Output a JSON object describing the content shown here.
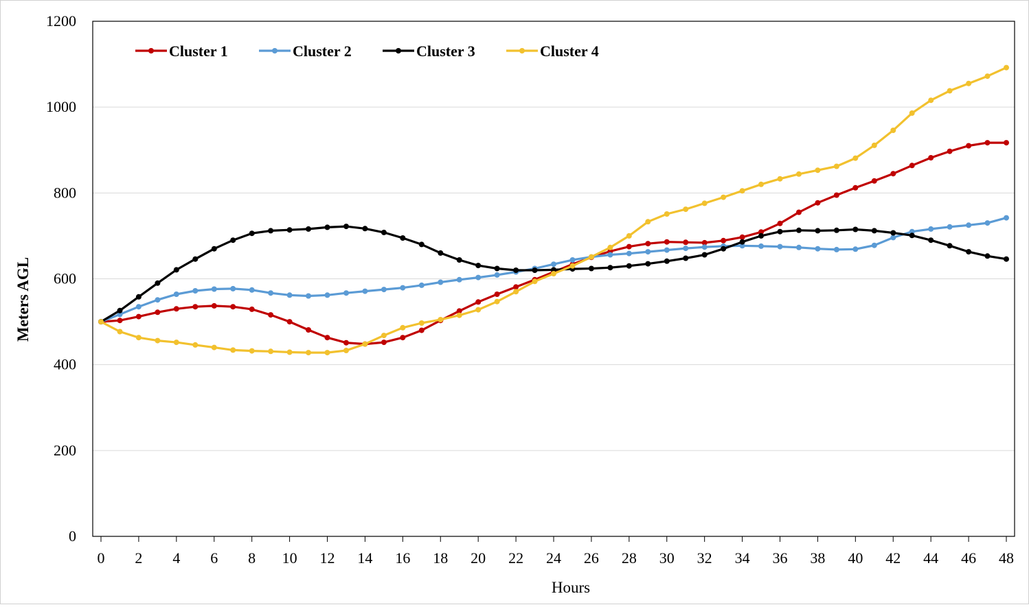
{
  "chart_data": {
    "type": "line",
    "title": "",
    "xlabel": "Hours",
    "ylabel": "Meters AGL",
    "xlim": [
      0,
      48
    ],
    "ylim": [
      0,
      1200
    ],
    "x_ticks": [
      0,
      2,
      4,
      6,
      8,
      10,
      12,
      14,
      16,
      18,
      20,
      22,
      24,
      26,
      28,
      30,
      32,
      34,
      36,
      38,
      40,
      42,
      44,
      46,
      48
    ],
    "y_ticks": [
      0,
      200,
      400,
      600,
      800,
      1000,
      1200
    ],
    "grid": "horizontal",
    "legend": "top-left",
    "x": [
      0,
      1,
      2,
      3,
      4,
      5,
      6,
      7,
      8,
      9,
      10,
      11,
      12,
      13,
      14,
      15,
      16,
      17,
      18,
      19,
      20,
      21,
      22,
      23,
      24,
      25,
      26,
      27,
      28,
      29,
      30,
      31,
      32,
      33,
      34,
      35,
      36,
      37,
      38,
      39,
      40,
      41,
      42,
      43,
      44,
      45,
      46,
      47,
      48
    ],
    "series": [
      {
        "name": "Cluster 1",
        "color": "#c00000",
        "values": [
          500,
          503,
          512,
          522,
          530,
          535,
          537,
          535,
          529,
          516,
          500,
          481,
          463,
          451,
          448,
          452,
          463,
          480,
          503,
          525,
          546,
          564,
          581,
          598,
          616,
          634,
          650,
          664,
          675,
          682,
          686,
          685,
          684,
          689,
          697,
          709,
          729,
          755,
          777,
          795,
          812,
          828,
          845,
          864,
          882,
          897,
          910,
          917,
          917
        ]
      },
      {
        "name": "Cluster 2",
        "color": "#5b9bd5",
        "values": [
          500,
          517,
          535,
          551,
          564,
          572,
          576,
          577,
          574,
          567,
          562,
          560,
          562,
          567,
          571,
          575,
          579,
          585,
          592,
          598,
          603,
          609,
          616,
          624,
          634,
          644,
          651,
          656,
          659,
          663,
          667,
          671,
          674,
          676,
          677,
          676,
          675,
          673,
          670,
          668,
          669,
          678,
          696,
          710,
          716,
          721,
          725,
          730,
          742
        ]
      },
      {
        "name": "Cluster 3",
        "color": "#000000",
        "values": [
          500,
          526,
          558,
          590,
          621,
          646,
          670,
          690,
          706,
          712,
          714,
          716,
          720,
          722,
          717,
          708,
          695,
          680,
          660,
          644,
          631,
          624,
          620,
          620,
          621,
          623,
          624,
          626,
          630,
          635,
          641,
          648,
          656,
          670,
          686,
          700,
          710,
          713,
          712,
          713,
          715,
          712,
          707,
          701,
          690,
          677,
          663,
          653,
          646
        ]
      },
      {
        "name": "Cluster 4",
        "color": "#f2c12e",
        "values": [
          500,
          477,
          463,
          456,
          452,
          446,
          440,
          434,
          432,
          431,
          429,
          428,
          428,
          433,
          448,
          468,
          486,
          497,
          505,
          515,
          528,
          547,
          570,
          594,
          612,
          630,
          651,
          673,
          700,
          733,
          751,
          762,
          776,
          790,
          805,
          820,
          833,
          844,
          853,
          862,
          881,
          911,
          946,
          986,
          1016,
          1038,
          1055,
          1072,
          1092
        ]
      }
    ]
  }
}
